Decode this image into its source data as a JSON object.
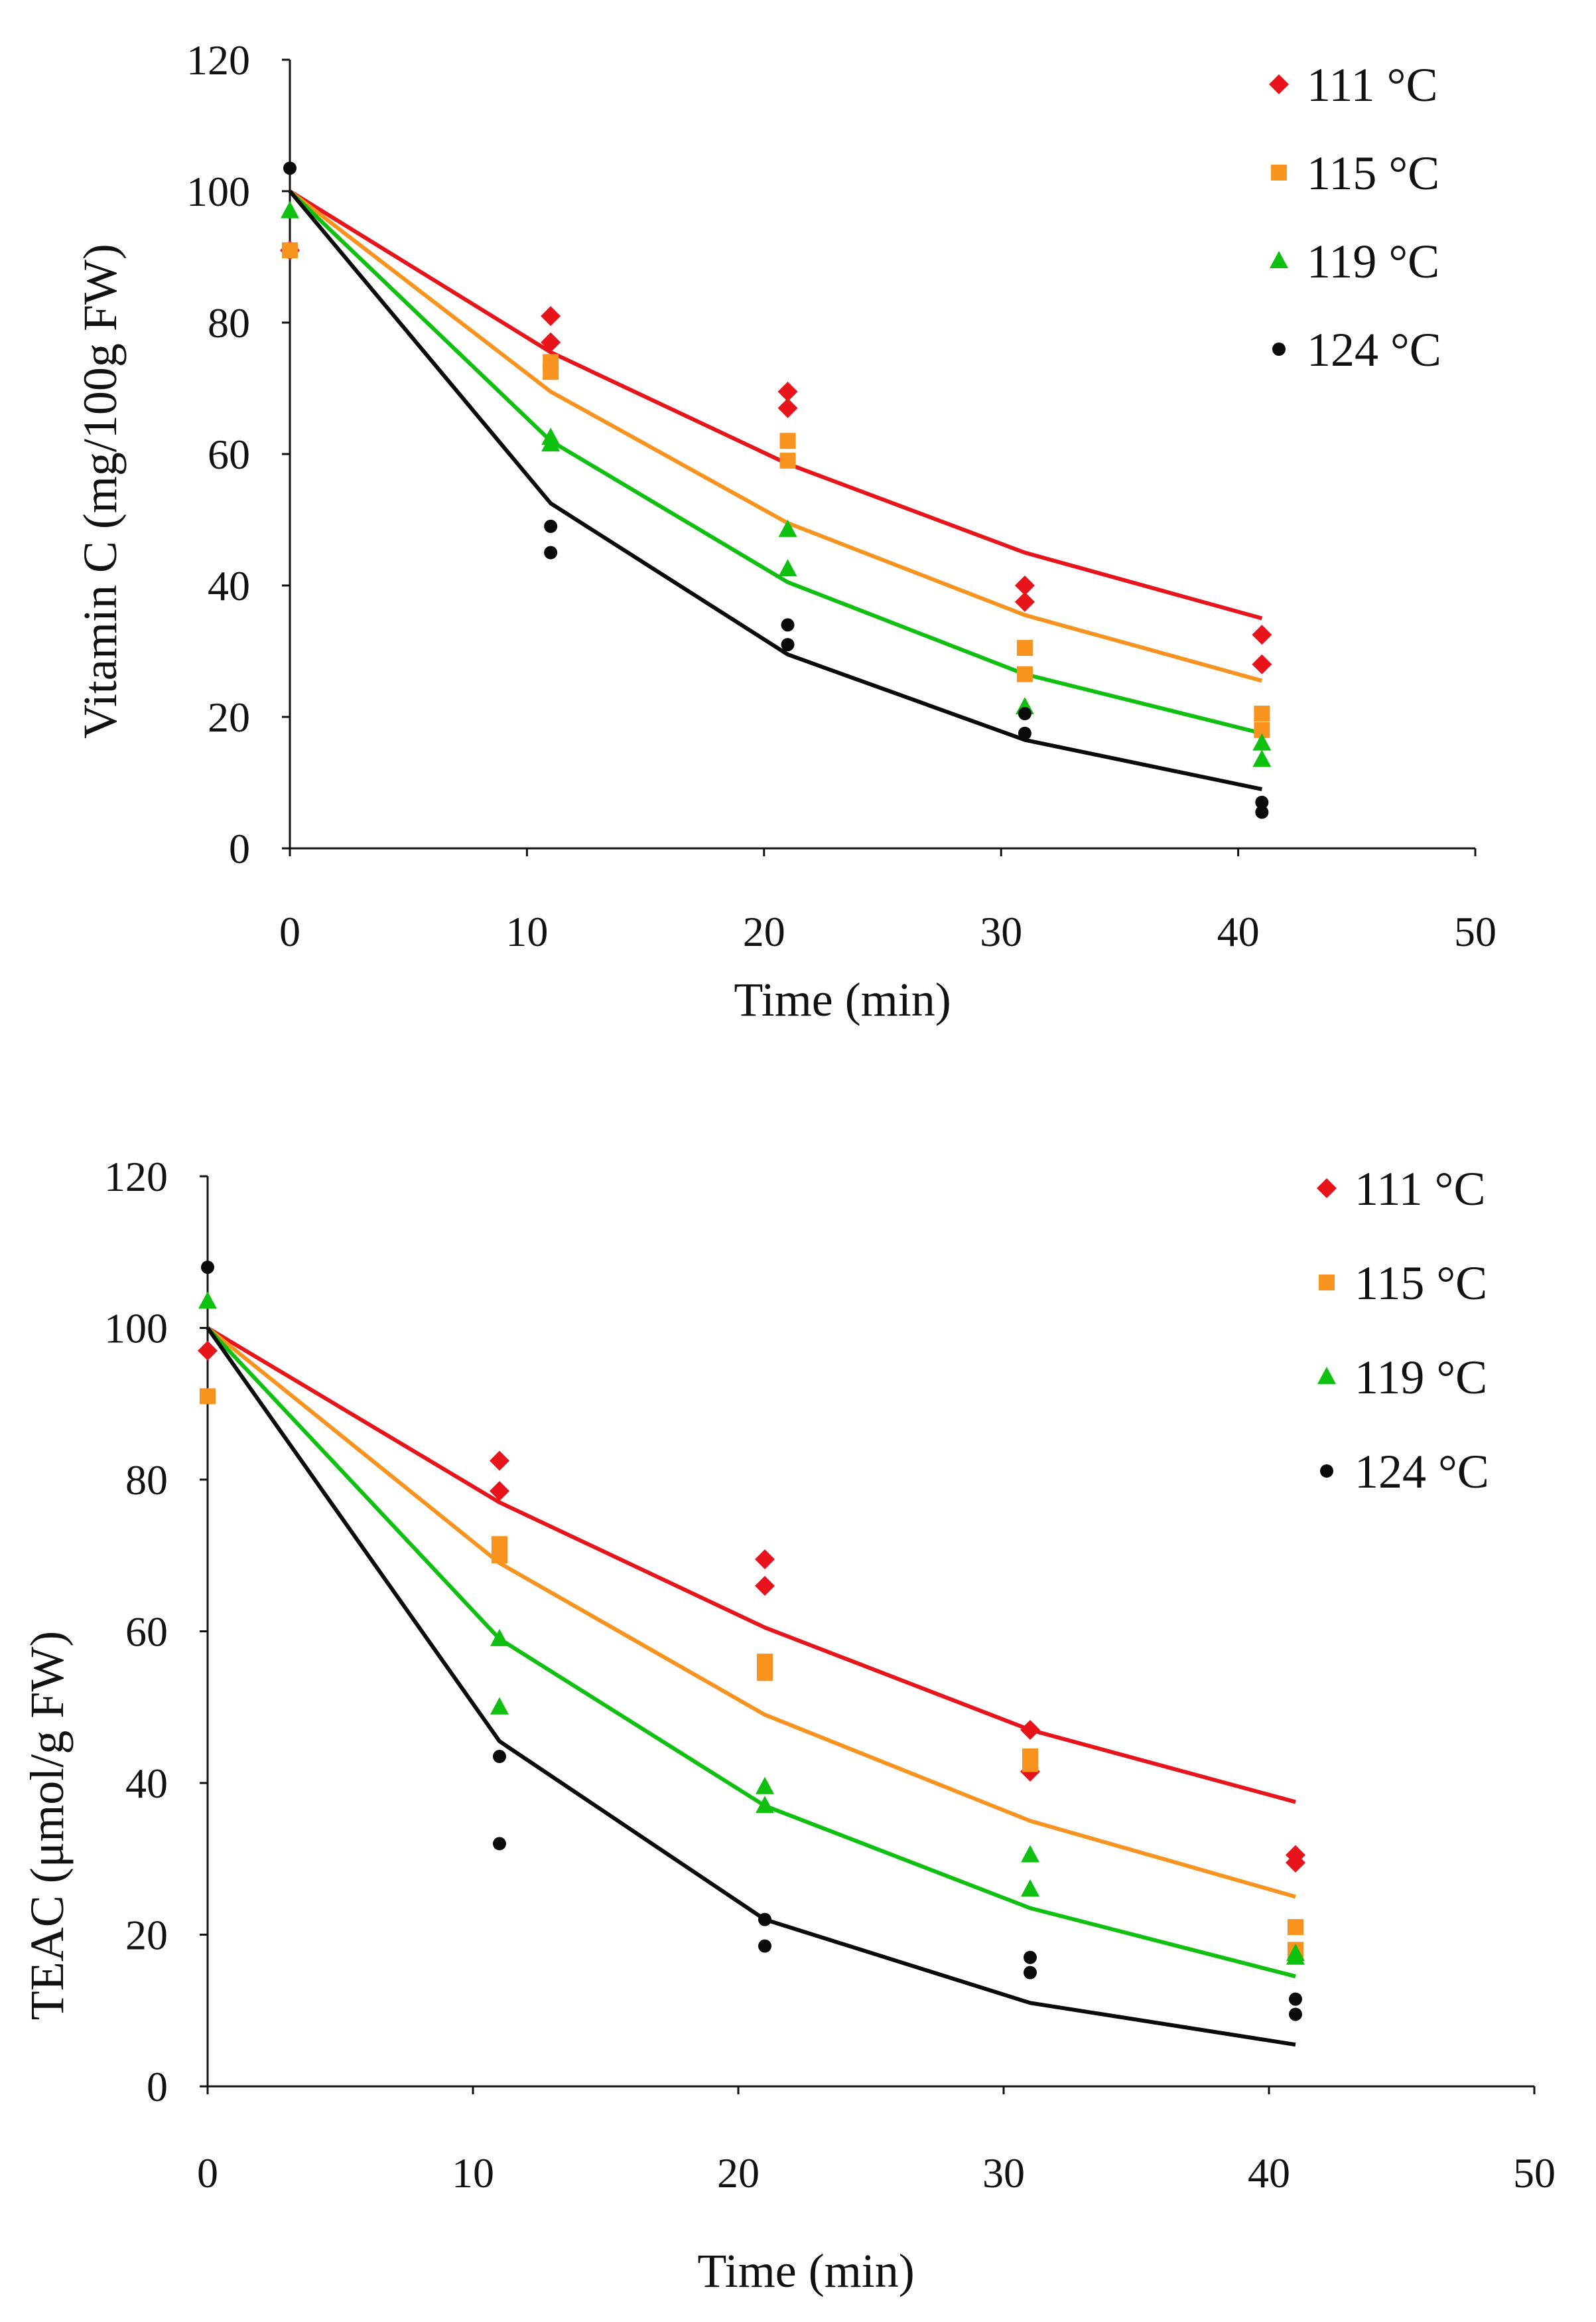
{
  "colors": {
    "t111": "#e8141b",
    "t115": "#f7931e",
    "t119": "#10c010",
    "t124": "#0a0a0a"
  },
  "chart_data": [
    {
      "type": "scatter",
      "title": "",
      "xlabel": "Time (min)",
      "ylabel": "Vitamin C (mg/100g FW)",
      "xlim": [
        0,
        50
      ],
      "ylim": [
        0,
        120
      ],
      "xticks": [
        "0",
        "10",
        "20",
        "30",
        "40",
        "50"
      ],
      "yticks": [
        "0",
        "20",
        "40",
        "60",
        "80",
        "100",
        "120"
      ],
      "legend": [
        {
          "label": "111 °C",
          "marker": "diamond",
          "color_key": "t111"
        },
        {
          "label": "115 °C",
          "marker": "square",
          "color_key": "t115"
        },
        {
          "label": "119 °C",
          "marker": "triangle",
          "color_key": "t119"
        },
        {
          "label": "124 °C",
          "marker": "circle",
          "color_key": "t124"
        }
      ],
      "series": [
        {
          "name": "111 °C",
          "marker": "diamond",
          "color_key": "t111",
          "points": [
            [
              0,
              91
            ],
            [
              11,
              81
            ],
            [
              11,
              77
            ],
            [
              21,
              69.5
            ],
            [
              21,
              67
            ],
            [
              31,
              40
            ],
            [
              31,
              37.5
            ],
            [
              41,
              32.5
            ],
            [
              41,
              28
            ]
          ],
          "fit": [
            [
              0,
              100
            ],
            [
              11,
              75.5
            ],
            [
              21,
              58.5
            ],
            [
              31,
              45
            ],
            [
              41,
              35
            ]
          ]
        },
        {
          "name": "115 °C",
          "marker": "square",
          "color_key": "t115",
          "points": [
            [
              0,
              91
            ],
            [
              11,
              74
            ],
            [
              11,
              72.5
            ],
            [
              21,
              62
            ],
            [
              21,
              59
            ],
            [
              31,
              30.5
            ],
            [
              31,
              26.5
            ],
            [
              41,
              20.5
            ],
            [
              41,
              18
            ]
          ],
          "fit": [
            [
              0,
              100
            ],
            [
              11,
              69.5
            ],
            [
              21,
              49.5
            ],
            [
              31,
              35.5
            ],
            [
              41,
              25.5
            ]
          ]
        },
        {
          "name": "119 °C",
          "marker": "triangle",
          "color_key": "t119",
          "points": [
            [
              0,
              97
            ],
            [
              11,
              62.5
            ],
            [
              11,
              61.5
            ],
            [
              21,
              48.5
            ],
            [
              21,
              42.5
            ],
            [
              31,
              21.5
            ],
            [
              41,
              16
            ],
            [
              41,
              13.5
            ]
          ],
          "fit": [
            [
              0,
              100
            ],
            [
              11,
              62
            ],
            [
              21,
              40.5
            ],
            [
              31,
              26.5
            ],
            [
              41,
              17.5
            ]
          ]
        },
        {
          "name": "124 °C",
          "marker": "circle",
          "color_key": "t124",
          "points": [
            [
              0,
              103.5
            ],
            [
              11,
              49
            ],
            [
              11,
              45
            ],
            [
              21,
              34
            ],
            [
              21,
              31
            ],
            [
              31,
              20.5
            ],
            [
              31,
              17.5
            ],
            [
              41,
              7
            ],
            [
              41,
              5.5
            ]
          ],
          "fit": [
            [
              0,
              100
            ],
            [
              11,
              52.5
            ],
            [
              21,
              29.5
            ],
            [
              31,
              16.5
            ],
            [
              41,
              9
            ]
          ]
        }
      ]
    },
    {
      "type": "scatter",
      "title": "",
      "xlabel": "Time (min)",
      "ylabel": "TEAC (μmol/g FW)",
      "xlim": [
        0,
        50
      ],
      "ylim": [
        0,
        120
      ],
      "xticks": [
        "0",
        "10",
        "20",
        "30",
        "40",
        "50"
      ],
      "yticks": [
        "0",
        "20",
        "40",
        "60",
        "80",
        "100",
        "120"
      ],
      "legend": [
        {
          "label": "111 °C",
          "marker": "diamond",
          "color_key": "t111"
        },
        {
          "label": "115 °C",
          "marker": "square",
          "color_key": "t115"
        },
        {
          "label": "119 °C",
          "marker": "triangle",
          "color_key": "t119"
        },
        {
          "label": "124 °C",
          "marker": "circle",
          "color_key": "t124"
        }
      ],
      "series": [
        {
          "name": "111 °C",
          "marker": "diamond",
          "color_key": "t111",
          "points": [
            [
              0,
              97
            ],
            [
              11,
              82.5
            ],
            [
              11,
              78.5
            ],
            [
              21,
              69.5
            ],
            [
              21,
              66
            ],
            [
              31,
              47
            ],
            [
              31,
              41.5
            ],
            [
              41,
              30.5
            ],
            [
              41,
              29.5
            ]
          ],
          "fit": [
            [
              0,
              100
            ],
            [
              11,
              77
            ],
            [
              21,
              60.5
            ],
            [
              31,
              47
            ],
            [
              41,
              37.5
            ]
          ]
        },
        {
          "name": "115 °C",
          "marker": "square",
          "color_key": "t115",
          "points": [
            [
              0,
              91
            ],
            [
              11,
              71.5
            ],
            [
              11,
              70
            ],
            [
              21,
              56
            ],
            [
              21,
              54.5
            ],
            [
              31,
              43.5
            ],
            [
              31,
              42.5
            ],
            [
              41,
              21
            ],
            [
              41,
              18
            ]
          ],
          "fit": [
            [
              0,
              100
            ],
            [
              11,
              69
            ],
            [
              21,
              49
            ],
            [
              31,
              35
            ],
            [
              41,
              25
            ]
          ]
        },
        {
          "name": "119 °C",
          "marker": "triangle",
          "color_key": "t119",
          "points": [
            [
              0,
              103.5
            ],
            [
              11,
              59
            ],
            [
              11,
              50
            ],
            [
              21,
              39.5
            ],
            [
              21,
              37
            ],
            [
              31,
              30.5
            ],
            [
              31,
              26
            ],
            [
              41,
              17.5
            ],
            [
              41,
              17
            ]
          ],
          "fit": [
            [
              0,
              100
            ],
            [
              11,
              59
            ],
            [
              21,
              37
            ],
            [
              31,
              23.5
            ],
            [
              41,
              14.5
            ]
          ]
        },
        {
          "name": "124 °C",
          "marker": "circle",
          "color_key": "t124",
          "points": [
            [
              0,
              108
            ],
            [
              11,
              43.5
            ],
            [
              11,
              32
            ],
            [
              21,
              22
            ],
            [
              21,
              18.5
            ],
            [
              31,
              17
            ],
            [
              31,
              15
            ],
            [
              41,
              11.5
            ],
            [
              41,
              9.5
            ]
          ],
          "fit": [
            [
              0,
              100
            ],
            [
              11,
              45.5
            ],
            [
              21,
              22
            ],
            [
              31,
              11
            ],
            [
              41,
              5.5
            ]
          ]
        }
      ]
    }
  ]
}
